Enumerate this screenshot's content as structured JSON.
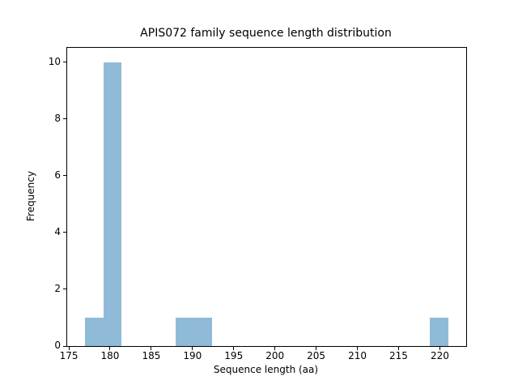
{
  "figure": {
    "background_color": "#ffffff",
    "text_color": "#000000",
    "spine_color": "#000000"
  },
  "chart_data": {
    "type": "bar",
    "subtype": "histogram",
    "title": "APIS072 family sequence length distribution",
    "xlabel": "Sequence length (aa)",
    "ylabel": "Frequency",
    "bar_color": "#8fbbd9",
    "bin_edges": [
      177.0,
      179.2,
      181.4,
      183.6,
      185.8,
      188.0,
      190.2,
      192.4,
      194.6,
      196.8,
      199.0,
      201.2,
      203.4,
      205.6,
      207.8,
      210.0,
      212.2,
      214.4,
      216.6,
      218.8,
      221.0
    ],
    "counts": [
      1,
      10,
      0,
      0,
      0,
      1,
      1,
      0,
      0,
      0,
      0,
      0,
      0,
      0,
      0,
      0,
      0,
      0,
      0,
      1
    ],
    "xlim": [
      174.8,
      223.2
    ],
    "ylim": [
      0,
      10.5
    ],
    "xticks": [
      175,
      180,
      185,
      190,
      195,
      200,
      205,
      210,
      215,
      220
    ],
    "yticks": [
      0,
      2,
      4,
      6,
      8,
      10
    ],
    "grid": false,
    "legend": null
  }
}
